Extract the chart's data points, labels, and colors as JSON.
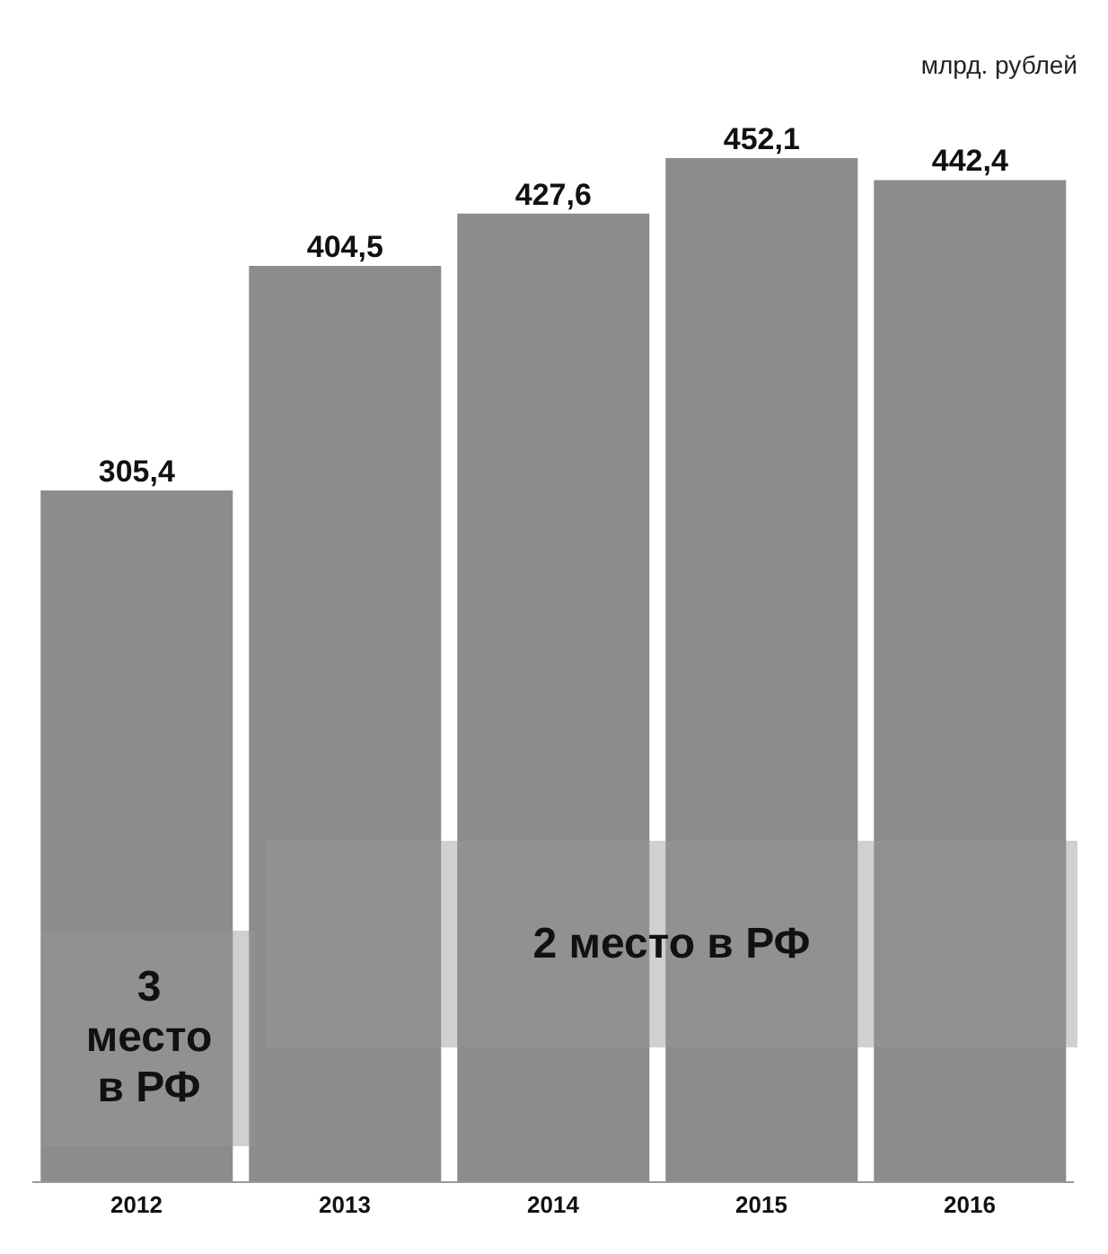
{
  "chart_data": {
    "type": "bar",
    "categories": [
      "2012",
      "2013",
      "2014",
      "2015",
      "2016"
    ],
    "values": [
      305.4,
      404.5,
      427.6,
      452.1,
      442.4
    ],
    "color": "#8c8c8c",
    "value_labels": [
      "305,4",
      "404,5",
      "427,6",
      "452,1",
      "442,4"
    ],
    "annotations": [
      "млрд. рублей",
      "3\nместо\nв РФ",
      "2 место в РФ"
    ]
  }
}
